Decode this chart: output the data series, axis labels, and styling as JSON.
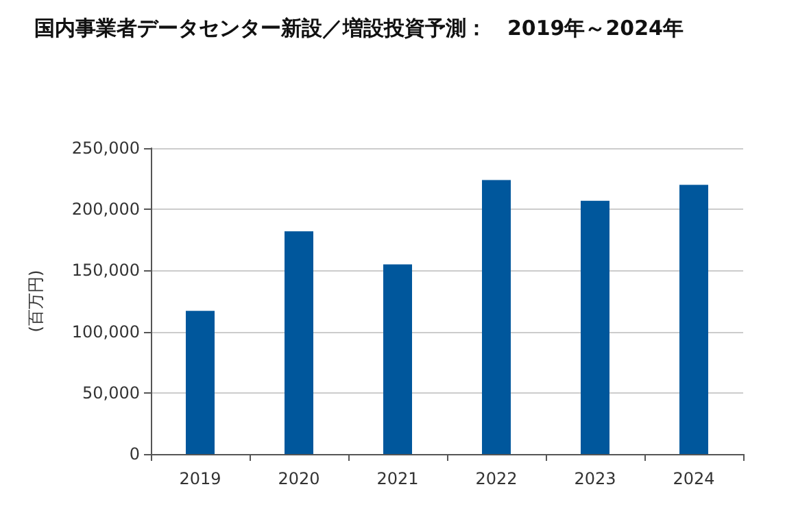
{
  "chart_data": {
    "type": "bar",
    "title": "国内事業者データセンター新設／増設投資予測：　2019年～2024年",
    "ylabel": "(百万円)",
    "categories": [
      "2019",
      "2020",
      "2021",
      "2022",
      "2023",
      "2024"
    ],
    "values": [
      117000,
      182000,
      155000,
      224000,
      207000,
      220000
    ],
    "color": "#00579c",
    "ylim": [
      0,
      250000
    ],
    "yticks": [
      0,
      {
        "value": 50000,
        "label": "50,000"
      },
      {
        "value": 100000,
        "label": "100,000"
      },
      {
        "value": 150000,
        "label": "150,000"
      },
      {
        "value": 200000,
        "label": "200,000"
      },
      {
        "value": 250000,
        "label": "250,000"
      }
    ],
    "grid": "y"
  }
}
